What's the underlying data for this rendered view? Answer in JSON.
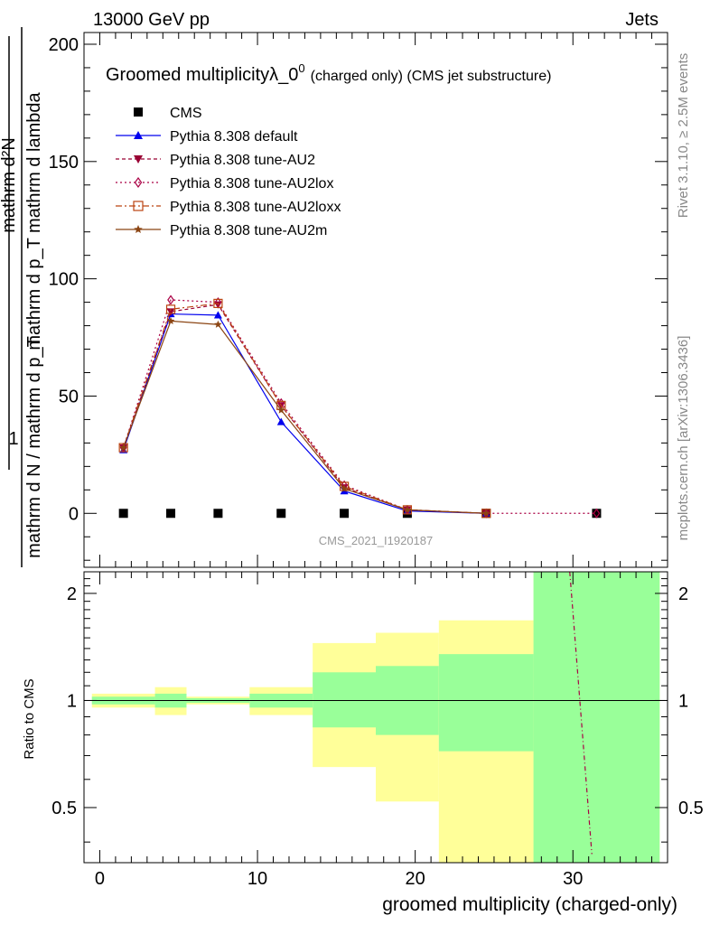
{
  "header": {
    "energy_label": "13000 GeV pp",
    "category_label": "Jets"
  },
  "side_labels": {
    "rivet": "Rivet 3.1.10, ≥ 2.5M events",
    "mcplots": "mcplots.cern.ch [arXiv:1306.3436]"
  },
  "chart_data": [
    {
      "type": "line",
      "title": "Groomed multiplicityλ_0",
      "title_sup": "0",
      "title_suffix": "(charged only) (CMS jet substructure)",
      "analysis_id": "CMS_2021_I1920187",
      "ylabel_numerator": "mathrm d²N",
      "ylabel_denominator": "mathrm d p_T mathrm d lambda",
      "ylabel_prefactor_den": "mathrm d N / mathrm d p_T",
      "ylim": [
        -23,
        205
      ],
      "xlim": [
        -1,
        36
      ],
      "yticks": [
        0,
        50,
        100,
        150,
        200
      ],
      "grid": false,
      "legend_position": "top-left",
      "x": [
        1.5,
        4.5,
        7.5,
        11.5,
        15.5,
        19.5,
        24.5,
        31.5
      ],
      "series": [
        {
          "name": "CMS",
          "marker": "square",
          "color": "#000000",
          "values": [
            0,
            0,
            0,
            0,
            0,
            0,
            0,
            0
          ]
        },
        {
          "name": "Pythia 8.308 default",
          "marker": "triangle-up",
          "color": "#0000ee",
          "dash": "",
          "values": [
            27,
            85,
            84.5,
            39,
            9.5,
            1,
            0,
            null
          ]
        },
        {
          "name": "Pythia 8.308 tune-AU2",
          "marker": "triangle-down",
          "color": "#990033",
          "dash": "4,3",
          "values": [
            28,
            86,
            89,
            46,
            11,
            1.5,
            0,
            null
          ]
        },
        {
          "name": "Pythia 8.308 tune-AU2lox",
          "marker": "diamond",
          "color": "#aa0044",
          "dash": "2,3",
          "values": [
            28,
            91,
            90,
            47,
            12,
            1.5,
            0,
            0
          ]
        },
        {
          "name": "Pythia 8.308 tune-AU2loxx",
          "marker": "square-open",
          "color": "#bb4411",
          "dash": "7,3,2,3",
          "values": [
            28,
            87,
            89.5,
            46,
            11.5,
            1.5,
            0,
            null
          ]
        },
        {
          "name": "Pythia 8.308 tune-AU2m",
          "marker": "star",
          "color": "#8b4513",
          "dash": "",
          "values": [
            28,
            82,
            80.5,
            44,
            10.5,
            1.5,
            0,
            null
          ]
        }
      ]
    },
    {
      "type": "area",
      "ylabel": "Ratio to CMS",
      "xlabel": "groomed multiplicity (charged-only)",
      "ylim": [
        0.35,
        2.3
      ],
      "xlim": [
        -1,
        36
      ],
      "yticks": [
        0.5,
        1,
        2
      ],
      "xticks": [
        0,
        10,
        20,
        30
      ],
      "bands": [
        {
          "x0": -0.5,
          "x1": 3.5,
          "yellow": [
            0.955,
            1.045
          ],
          "green": [
            0.975,
            1.025
          ]
        },
        {
          "x0": 3.5,
          "x1": 5.5,
          "yellow": [
            0.91,
            1.09
          ],
          "green": [
            0.955,
            1.045
          ]
        },
        {
          "x0": 5.5,
          "x1": 9.5,
          "yellow": [
            0.975,
            1.025
          ],
          "green": [
            0.985,
            1.015
          ]
        },
        {
          "x0": 9.5,
          "x1": 13.5,
          "yellow": [
            0.91,
            1.09
          ],
          "green": [
            0.955,
            1.045
          ]
        },
        {
          "x0": 13.5,
          "x1": 17.5,
          "yellow": [
            0.65,
            1.45
          ],
          "green": [
            0.84,
            1.2
          ]
        },
        {
          "x0": 17.5,
          "x1": 21.5,
          "yellow": [
            0.52,
            1.55
          ],
          "green": [
            0.8,
            1.25
          ]
        },
        {
          "x0": 21.5,
          "x1": 27.5,
          "yellow": [
            0.3,
            1.68
          ],
          "green": [
            0.72,
            1.35
          ]
        },
        {
          "x0": 27.5,
          "x1": 35.5,
          "yellow": [
            0.3,
            2.4
          ],
          "green": [
            0.3,
            2.4
          ]
        }
      ],
      "ratio_series": [
        {
          "name": "Pythia 8.308 tune-AU2lox",
          "color": "#aa0044",
          "dash": "5,3,1,3",
          "x": [
            29.8,
            31.2
          ],
          "values": [
            2.4,
            0.37
          ]
        }
      ]
    }
  ]
}
